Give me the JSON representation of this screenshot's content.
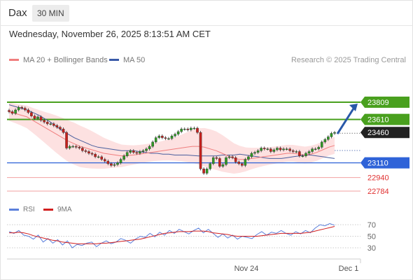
{
  "header": {
    "title": "Dax",
    "timeframe": "30 MIN",
    "datetime": "Wednesday, November 26, 2025 8:13:51 AM CET"
  },
  "legend": {
    "ma20": {
      "label": "MA 20 + Bollinger Bands",
      "color": "#f07e7e"
    },
    "ma50": {
      "label": "MA 50",
      "color": "#3a5aa8"
    },
    "research": "Research © 2025 Trading Central"
  },
  "colors": {
    "up": "#2f9a24",
    "down": "#c8201c",
    "resistance": "#49a01e",
    "support": "#2f63d8",
    "target": "#e03030",
    "arrow": "#2858a8",
    "band": "#fddcdc",
    "rsi": "#5b7fdb",
    "rsi_ma": "#d21f1f"
  },
  "chart_data": [
    {
      "type": "candlestick",
      "title": "Dax 30 MIN",
      "levels": [
        {
          "value": 23809,
          "label": "23809",
          "kind": "resistance"
        },
        {
          "value": 23610,
          "label": "23610",
          "kind": "resistance"
        },
        {
          "value": 23460,
          "label": "23460",
          "kind": "last"
        },
        {
          "value": 23110,
          "label": "23110",
          "kind": "pivot"
        },
        {
          "value": 22940,
          "label": "22940",
          "kind": "support"
        },
        {
          "value": 22784,
          "label": "22784",
          "kind": "support"
        }
      ],
      "x_labels": [
        "Nov 24",
        "Dec 1"
      ],
      "ylim": [
        22750,
        24000
      ],
      "series": [
        {
          "name": "Dax",
          "close": [
            23700,
            23680,
            23720,
            23750,
            23740,
            23720,
            23690,
            23650,
            23620,
            23640,
            23600,
            23580,
            23560,
            23560,
            23540,
            23520,
            23500,
            23460,
            23280,
            23300,
            23300,
            23290,
            23280,
            23250,
            23240,
            23220,
            23210,
            23180,
            23180,
            23150,
            23130,
            23100,
            23080,
            23090,
            23110,
            23150,
            23190,
            23230,
            23250,
            23230,
            23220,
            23240,
            23250,
            23270,
            23300,
            23350,
            23400,
            23420,
            23400,
            23390,
            23390,
            23420,
            23440,
            23470,
            23500,
            23500,
            23490,
            23510,
            23510,
            23460,
            23040,
            22990,
            23040,
            23100,
            23170,
            23160,
            23070,
            23090,
            23170,
            23180,
            23170,
            23120,
            23100,
            23080,
            23150,
            23180,
            23220,
            23230,
            23250,
            23280,
            23270,
            23270,
            23240,
            23260,
            23280,
            23260,
            23270,
            23270,
            23250,
            23240,
            23240,
            23190,
            23190,
            23220,
            23240,
            23270,
            23270,
            23290,
            23350,
            23380,
            23410,
            23450,
            23460
          ]
        },
        {
          "name": "MA 20",
          "values": [
            23700,
            23680,
            23660,
            23640,
            23600,
            23560,
            23520,
            23480,
            23440,
            23400,
            23360,
            23330,
            23300,
            23280,
            23260,
            23240,
            23220,
            23210,
            23200,
            23190,
            23195,
            23200,
            23210,
            23220,
            23230,
            23240,
            23250,
            23260,
            23270,
            23280,
            23290,
            23300,
            23300,
            23290,
            23270,
            23250,
            23220,
            23190,
            23160,
            23150,
            23150,
            23160,
            23170,
            23180,
            23190,
            23200,
            23210,
            23220,
            23220,
            23210,
            23200,
            23210,
            23230,
            23260,
            23290,
            23310
          ]
        },
        {
          "name": "MA 50",
          "values": [
            23780,
            23760,
            23740,
            23720,
            23690,
            23660,
            23620,
            23580,
            23530,
            23480,
            23440,
            23400,
            23370,
            23340,
            23310,
            23290,
            23280,
            23270,
            23260,
            23250,
            23250,
            23250,
            23240,
            23230,
            23220,
            23220,
            23210,
            23210,
            23200,
            23200,
            23200,
            23195,
            23190,
            23190,
            23190,
            23190,
            23200,
            23200,
            23200,
            23210,
            23200,
            23190,
            23180,
            23170,
            23160,
            23160,
            23160,
            23170,
            23180,
            23190,
            23200,
            23200,
            23190,
            23180,
            23170,
            23160
          ]
        }
      ]
    },
    {
      "type": "line",
      "title": "RSI",
      "ylim": [
        20,
        80
      ],
      "yticks": [
        70,
        50,
        30
      ],
      "series": [
        {
          "name": "RSI",
          "values": [
            58,
            55,
            60,
            52,
            50,
            45,
            52,
            40,
            46,
            38,
            44,
            35,
            42,
            30,
            36,
            34,
            38,
            40,
            32,
            38,
            42,
            37,
            40,
            46,
            43,
            38,
            45,
            50,
            48,
            55,
            49,
            57,
            52,
            60,
            55,
            62,
            58,
            54,
            60,
            64,
            56,
            62,
            55,
            48,
            54,
            47,
            52,
            45,
            50,
            48,
            46,
            53,
            58,
            52,
            57,
            55,
            60,
            55,
            52,
            58,
            54,
            60,
            56,
            64,
            70,
            68,
            72,
            69
          ]
        },
        {
          "name": "9MA",
          "values": [
            56,
            56,
            57,
            56,
            54,
            51,
            49,
            47,
            45,
            43,
            42,
            40,
            39,
            38,
            37,
            37,
            37,
            37,
            37,
            38,
            38,
            39,
            40,
            41,
            42,
            43,
            44,
            45,
            47,
            49,
            51,
            53,
            55,
            56,
            57,
            58,
            58,
            58,
            59,
            59,
            59,
            58,
            56,
            55,
            54,
            53,
            51,
            50,
            50,
            50,
            50,
            50,
            51,
            52,
            53,
            54,
            55,
            55,
            55,
            55,
            55,
            56,
            57,
            59,
            61,
            63,
            65,
            67
          ]
        }
      ]
    }
  ]
}
